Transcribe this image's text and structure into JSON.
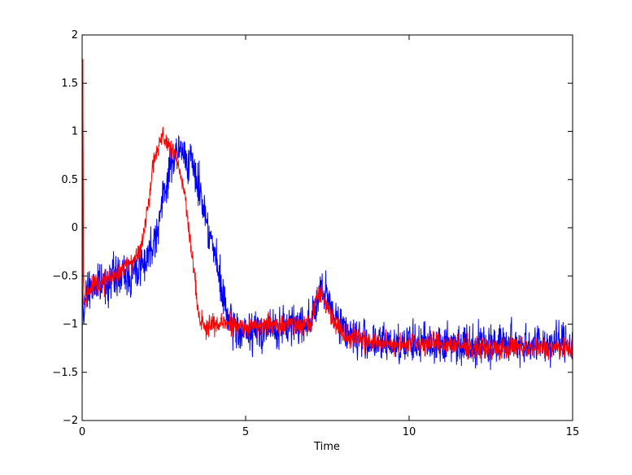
{
  "chart_data": {
    "type": "line",
    "title": "",
    "xlabel": "Time",
    "ylabel": "",
    "xlim": [
      0,
      15
    ],
    "ylim": [
      -2,
      2
    ],
    "xticks": [
      0,
      5,
      10,
      15
    ],
    "xtick_labels": [
      "0",
      "5",
      "10",
      "15"
    ],
    "yticks": [
      -2,
      -1.5,
      -1,
      -0.5,
      0,
      0.5,
      1,
      1.5,
      2
    ],
    "ytick_labels": [
      "−2",
      "−1.5",
      "−1",
      "−0.5",
      "0",
      "0.5",
      "1",
      "1.5",
      "2"
    ],
    "grid": false,
    "legend": "none",
    "noise_note": "",
    "series": [
      {
        "color": "#0000ff",
        "x": [
          0,
          0.05,
          0.1,
          0.3,
          0.5,
          1.0,
          1.5,
          2.0,
          2.3,
          2.6,
          2.8,
          3.0,
          3.3,
          3.6,
          4.0,
          4.3,
          4.5,
          5.0,
          5.5,
          6.0,
          6.5,
          7.0,
          7.3,
          7.6,
          8.0,
          8.5,
          9.0,
          10.0,
          11.0,
          12.0,
          13.0,
          14.0,
          15.0
        ],
        "y": [
          -0.6,
          -1.0,
          -0.7,
          -0.6,
          -0.6,
          -0.5,
          -0.5,
          -0.3,
          0.0,
          0.5,
          0.75,
          0.8,
          0.7,
          0.4,
          -0.2,
          -0.7,
          -1.0,
          -1.1,
          -1.05,
          -1.05,
          -1.0,
          -0.95,
          -0.65,
          -0.8,
          -1.05,
          -1.15,
          -1.2,
          -1.2,
          -1.2,
          -1.2,
          -1.2,
          -1.2,
          -1.2
        ],
        "noise": 0.15
      },
      {
        "color": "#ff0000",
        "x": [
          0,
          0.02,
          0.04,
          0.06,
          0.1,
          0.3,
          0.5,
          1.0,
          1.5,
          1.8,
          2.0,
          2.2,
          2.4,
          2.6,
          2.8,
          3.0,
          3.2,
          3.4,
          3.6,
          3.8,
          4.0,
          4.5,
          5.0,
          5.5,
          6.0,
          6.5,
          7.0,
          7.2,
          7.4,
          7.7,
          8.0,
          8.5,
          9.0,
          10.0,
          11.0,
          12.0,
          13.0,
          14.0,
          15.0
        ],
        "y": [
          -1.7,
          1.75,
          -0.5,
          -0.8,
          -0.75,
          -0.6,
          -0.6,
          -0.5,
          -0.35,
          -0.2,
          0.2,
          0.7,
          0.95,
          0.85,
          0.75,
          0.6,
          0.2,
          -0.4,
          -0.95,
          -1.05,
          -1.0,
          -1.0,
          -1.05,
          -1.0,
          -1.0,
          -1.0,
          -1.0,
          -0.65,
          -0.75,
          -0.95,
          -1.1,
          -1.15,
          -1.2,
          -1.2,
          -1.2,
          -1.25,
          -1.25,
          -1.25,
          -1.25
        ],
        "noise": 0.08
      }
    ]
  }
}
